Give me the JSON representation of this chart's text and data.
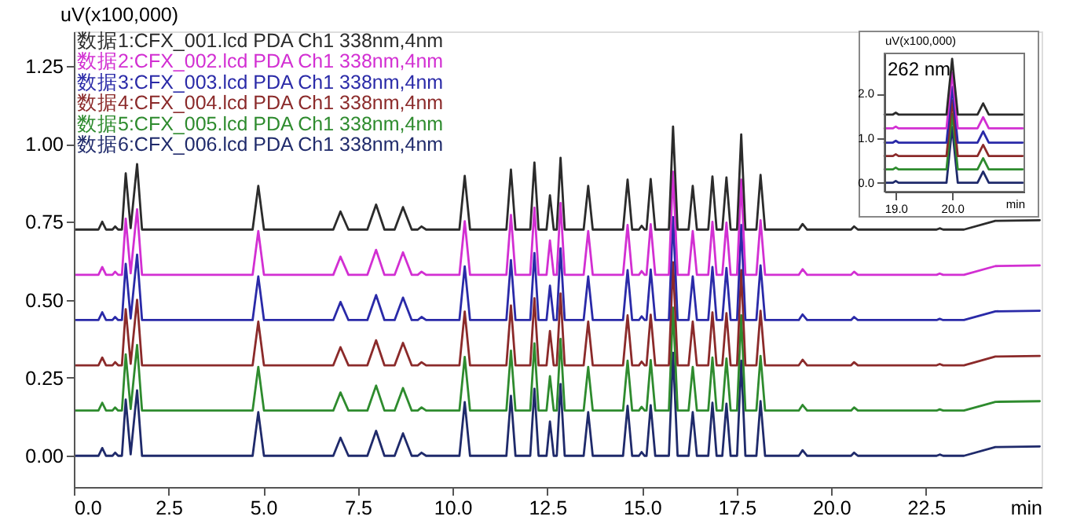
{
  "chart_data": [
    {
      "type": "line",
      "ylabel": "uV(x100,000)",
      "xlabel": "min",
      "legend": "top left",
      "grid": false,
      "xlim": [
        0,
        25.55
      ],
      "ylim": [
        -0.1,
        1.36
      ],
      "xticks": [
        {
          "value": 0,
          "label": "0.0"
        },
        {
          "value": 2.5,
          "label": "2.5"
        },
        {
          "value": 5,
          "label": "5.0"
        },
        {
          "value": 7.5,
          "label": "7.5"
        },
        {
          "value": 10,
          "label": "10.0"
        },
        {
          "value": 12.5,
          "label": "12.5"
        },
        {
          "value": 15,
          "label": "15.0"
        },
        {
          "value": 17.5,
          "label": "17.5"
        },
        {
          "value": 20,
          "label": "20.0"
        },
        {
          "value": 22.5,
          "label": "22.5"
        }
      ],
      "yticks": [
        {
          "value": 0,
          "label": "0.00"
        },
        {
          "value": 0.25,
          "label": "0.25"
        },
        {
          "value": 0.5,
          "label": "0.50"
        },
        {
          "value": 0.75,
          "label": "0.75"
        },
        {
          "value": 1,
          "label": "1.00"
        },
        {
          "value": 1.25,
          "label": "1.25"
        }
      ],
      "x": [
        0,
        0.65,
        0.75,
        0.85,
        1.02,
        1.09,
        1.17,
        1.27,
        1.37,
        1.5,
        1.67,
        1.8,
        4.72,
        4.87,
        5.02,
        6.85,
        7.04,
        7.25,
        7.75,
        7.98,
        8.2,
        8.47,
        8.69,
        8.92,
        9.08,
        9.18,
        9.3,
        10.18,
        10.32,
        10.46,
        11.42,
        11.54,
        11.66,
        12.05,
        12.16,
        12.27,
        12.48,
        12.57,
        12.67,
        12.75,
        12.85,
        12.96,
        13.46,
        13.58,
        13.7,
        14.5,
        14.62,
        14.74,
        14.92,
        14.99,
        15.07,
        15.12,
        15.23,
        15.35,
        15.71,
        15.82,
        15.94,
        16.23,
        16.34,
        16.45,
        16.75,
        16.86,
        16.97,
        17.12,
        17.23,
        17.34,
        17.51,
        17.62,
        17.73,
        18.02,
        18.13,
        18.25,
        19.14,
        19.24,
        19.36,
        20.52,
        20.6,
        20.7,
        22.78,
        22.86,
        22.95,
        23.5,
        24.33,
        25.5
      ],
      "series": [
        {
          "name": "数据1:CFX_001.lcd PDA Ch1 338nm,4nm",
          "color": "#2b2b2b",
          "values": [
            0.725,
            0.725,
            0.75,
            0.725,
            0.725,
            0.735,
            0.725,
            0.725,
            0.905,
            0.73,
            0.935,
            0.725,
            0.725,
            0.865,
            0.725,
            0.725,
            0.783,
            0.725,
            0.725,
            0.805,
            0.725,
            0.725,
            0.797,
            0.725,
            0.725,
            0.735,
            0.725,
            0.725,
            0.897,
            0.725,
            0.725,
            0.917,
            0.725,
            0.725,
            0.94,
            0.725,
            0.725,
            0.835,
            0.725,
            0.725,
            0.955,
            0.725,
            0.725,
            0.865,
            0.725,
            0.725,
            0.885,
            0.725,
            0.725,
            0.737,
            0.725,
            0.725,
            0.887,
            0.725,
            0.725,
            1.055,
            0.725,
            0.725,
            0.865,
            0.725,
            0.725,
            0.895,
            0.725,
            0.725,
            0.892,
            0.725,
            0.725,
            1.03,
            0.725,
            0.725,
            0.9,
            0.725,
            0.725,
            0.743,
            0.725,
            0.725,
            0.735,
            0.725,
            0.725,
            0.729,
            0.725,
            0.725,
            0.753,
            0.755
          ]
        },
        {
          "name": "数据2:CFX_002.lcd PDA Ch1 338nm,4nm",
          "color": "#d22fd2",
          "values": [
            0.58,
            0.58,
            0.605,
            0.58,
            0.58,
            0.59,
            0.58,
            0.58,
            0.76,
            0.585,
            0.79,
            0.58,
            0.58,
            0.72,
            0.58,
            0.58,
            0.638,
            0.58,
            0.58,
            0.66,
            0.58,
            0.58,
            0.652,
            0.58,
            0.58,
            0.59,
            0.58,
            0.58,
            0.752,
            0.58,
            0.58,
            0.772,
            0.58,
            0.58,
            0.795,
            0.58,
            0.58,
            0.69,
            0.58,
            0.58,
            0.81,
            0.58,
            0.58,
            0.72,
            0.58,
            0.58,
            0.74,
            0.58,
            0.58,
            0.592,
            0.58,
            0.58,
            0.742,
            0.58,
            0.58,
            0.91,
            0.58,
            0.58,
            0.72,
            0.58,
            0.58,
            0.75,
            0.58,
            0.58,
            0.747,
            0.58,
            0.58,
            0.885,
            0.58,
            0.58,
            0.755,
            0.58,
            0.58,
            0.598,
            0.58,
            0.58,
            0.59,
            0.58,
            0.58,
            0.584,
            0.58,
            0.58,
            0.608,
            0.61
          ]
        },
        {
          "name": "数据3:CFX_003.lcd PDA Ch1 338nm,4nm",
          "color": "#2a2aa8",
          "values": [
            0.435,
            0.435,
            0.46,
            0.435,
            0.435,
            0.445,
            0.435,
            0.435,
            0.615,
            0.44,
            0.645,
            0.435,
            0.435,
            0.575,
            0.435,
            0.435,
            0.493,
            0.435,
            0.435,
            0.515,
            0.435,
            0.435,
            0.507,
            0.435,
            0.435,
            0.445,
            0.435,
            0.435,
            0.607,
            0.435,
            0.435,
            0.627,
            0.435,
            0.435,
            0.65,
            0.435,
            0.435,
            0.545,
            0.435,
            0.435,
            0.665,
            0.435,
            0.435,
            0.575,
            0.435,
            0.435,
            0.595,
            0.435,
            0.435,
            0.447,
            0.435,
            0.435,
            0.597,
            0.435,
            0.435,
            0.765,
            0.435,
            0.435,
            0.575,
            0.435,
            0.435,
            0.605,
            0.435,
            0.435,
            0.602,
            0.435,
            0.435,
            0.74,
            0.435,
            0.435,
            0.61,
            0.435,
            0.435,
            0.453,
            0.435,
            0.435,
            0.445,
            0.435,
            0.435,
            0.439,
            0.435,
            0.435,
            0.463,
            0.465
          ]
        },
        {
          "name": "数据4:CFX_004.lcd PDA Ch1 338nm,4nm",
          "color": "#8b2a2a",
          "values": [
            0.29,
            0.29,
            0.315,
            0.29,
            0.29,
            0.3,
            0.29,
            0.29,
            0.47,
            0.295,
            0.5,
            0.29,
            0.29,
            0.43,
            0.29,
            0.29,
            0.348,
            0.29,
            0.29,
            0.37,
            0.29,
            0.29,
            0.362,
            0.29,
            0.29,
            0.3,
            0.29,
            0.29,
            0.462,
            0.29,
            0.29,
            0.482,
            0.29,
            0.29,
            0.505,
            0.29,
            0.29,
            0.4,
            0.29,
            0.29,
            0.52,
            0.29,
            0.29,
            0.43,
            0.29,
            0.29,
            0.45,
            0.29,
            0.29,
            0.302,
            0.29,
            0.29,
            0.452,
            0.29,
            0.29,
            0.62,
            0.29,
            0.29,
            0.43,
            0.29,
            0.29,
            0.46,
            0.29,
            0.29,
            0.457,
            0.29,
            0.29,
            0.595,
            0.29,
            0.29,
            0.465,
            0.29,
            0.29,
            0.308,
            0.29,
            0.29,
            0.3,
            0.29,
            0.29,
            0.294,
            0.29,
            0.29,
            0.318,
            0.32
          ]
        },
        {
          "name": "数据5:CFX_005.lcd PDA Ch1 338nm,4nm",
          "color": "#2e8b2e",
          "values": [
            0.145,
            0.145,
            0.17,
            0.145,
            0.145,
            0.155,
            0.145,
            0.145,
            0.325,
            0.15,
            0.355,
            0.145,
            0.145,
            0.285,
            0.145,
            0.145,
            0.203,
            0.145,
            0.145,
            0.225,
            0.145,
            0.145,
            0.217,
            0.145,
            0.145,
            0.155,
            0.145,
            0.145,
            0.317,
            0.145,
            0.145,
            0.337,
            0.145,
            0.145,
            0.36,
            0.145,
            0.145,
            0.255,
            0.145,
            0.145,
            0.375,
            0.145,
            0.145,
            0.285,
            0.145,
            0.145,
            0.305,
            0.145,
            0.145,
            0.157,
            0.145,
            0.145,
            0.307,
            0.145,
            0.145,
            0.475,
            0.145,
            0.145,
            0.285,
            0.145,
            0.145,
            0.315,
            0.145,
            0.145,
            0.312,
            0.145,
            0.145,
            0.45,
            0.145,
            0.145,
            0.32,
            0.145,
            0.145,
            0.163,
            0.145,
            0.145,
            0.155,
            0.145,
            0.145,
            0.149,
            0.145,
            0.145,
            0.173,
            0.175
          ]
        },
        {
          "name": "数据6:CFX_006.lcd PDA Ch1 338nm,4nm",
          "color": "#1f2a6b",
          "values": [
            0,
            0,
            0.025,
            0,
            0,
            0.01,
            0,
            0,
            0.18,
            0.005,
            0.21,
            0,
            0,
            0.14,
            0,
            0,
            0.058,
            0,
            0,
            0.08,
            0,
            0,
            0.072,
            0,
            0,
            0.01,
            0,
            0,
            0.172,
            0,
            0,
            0.192,
            0,
            0,
            0.215,
            0,
            0,
            0.11,
            0,
            0,
            0.23,
            0,
            0,
            0.14,
            0,
            0,
            0.16,
            0,
            0,
            0.012,
            0,
            0,
            0.162,
            0,
            0,
            0.33,
            0,
            0,
            0.14,
            0,
            0,
            0.17,
            0,
            0,
            0.167,
            0,
            0,
            0.305,
            0,
            0,
            0.175,
            0,
            0,
            0.018,
            0,
            0,
            0.01,
            0,
            0,
            0.004,
            0,
            0,
            0.028,
            0.03
          ]
        }
      ]
    },
    {
      "type": "line",
      "ylabel": "uV(x100,000)",
      "xlabel": "min",
      "grid": false,
      "annotations": [
        "262 nm"
      ],
      "xlim": [
        18.8,
        21.28
      ],
      "ylim": [
        -0.2,
        2.9
      ],
      "xticks": [
        {
          "value": 19,
          "label": "19.0"
        },
        {
          "value": 20,
          "label": "20.0"
        }
      ],
      "yticks": [
        {
          "value": 0,
          "label": "0.0"
        },
        {
          "value": 1,
          "label": "1.0"
        },
        {
          "value": 2,
          "label": "2.0"
        }
      ],
      "x": [
        18.8,
        18.95,
        19.0,
        19.05,
        19.9,
        20.0,
        20.1,
        20.45,
        20.55,
        20.65,
        21.25
      ],
      "series": [
        {
          "color": "#2b2b2b",
          "values": [
            1.53,
            1.53,
            1.57,
            1.53,
            1.53,
            2.78,
            1.53,
            1.53,
            1.78,
            1.53,
            1.53
          ]
        },
        {
          "color": "#d22fd2",
          "values": [
            1.22,
            1.22,
            1.26,
            1.22,
            1.22,
            2.47,
            1.22,
            1.22,
            1.47,
            1.22,
            1.22
          ]
        },
        {
          "color": "#2a2aa8",
          "values": [
            0.9,
            0.9,
            0.94,
            0.9,
            0.9,
            2.15,
            0.9,
            0.9,
            1.15,
            0.9,
            0.9
          ]
        },
        {
          "color": "#8b2a2a",
          "values": [
            0.6,
            0.6,
            0.64,
            0.6,
            0.6,
            1.85,
            0.6,
            0.6,
            0.85,
            0.6,
            0.6
          ]
        },
        {
          "color": "#2e8b2e",
          "values": [
            0.3,
            0.3,
            0.34,
            0.3,
            0.3,
            1.55,
            0.3,
            0.3,
            0.55,
            0.3,
            0.3
          ]
        },
        {
          "color": "#1f2a6b",
          "values": [
            0,
            0,
            0.04,
            0,
            0,
            1.25,
            0,
            0,
            0.25,
            0,
            0
          ]
        }
      ]
    }
  ]
}
